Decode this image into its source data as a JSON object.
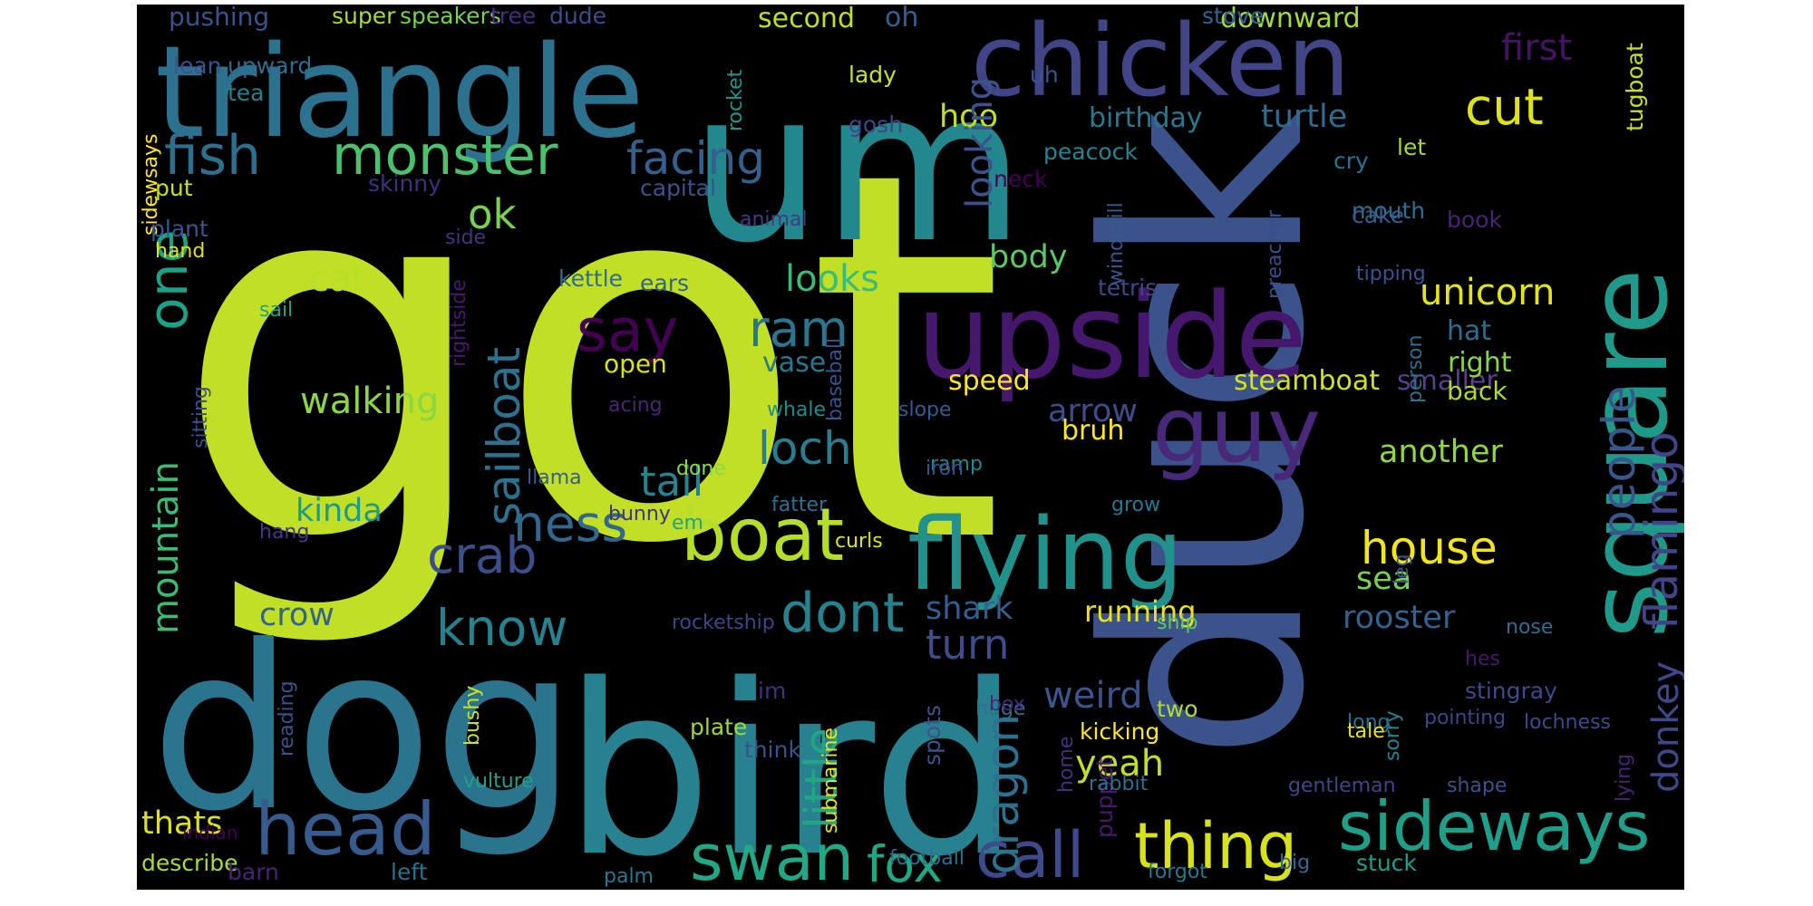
{
  "cloud": {
    "words": [
      {
        "t": "got",
        "c": "#c1df24"
      },
      {
        "t": "bird",
        "c": "#27818e"
      },
      {
        "t": "dog",
        "c": "#2b748e"
      },
      {
        "t": "duck",
        "c": "#3b528b"
      },
      {
        "t": "um",
        "c": "#23888e"
      },
      {
        "t": "triangle",
        "c": "#2c718e"
      },
      {
        "t": "upside",
        "c": "#46186d"
      },
      {
        "t": "chicken",
        "c": "#414487"
      },
      {
        "t": "flying",
        "c": "#21918c"
      },
      {
        "t": "guy",
        "c": "#482878"
      },
      {
        "t": "boat",
        "c": "#b5de2b"
      },
      {
        "t": "head",
        "c": "#375b8d"
      },
      {
        "t": "sideways",
        "c": "#1f9e89"
      },
      {
        "t": "thing",
        "c": "#d8e219"
      },
      {
        "t": "swan",
        "c": "#22a884"
      },
      {
        "t": "monster",
        "c": "#4ac16d"
      },
      {
        "t": "fish",
        "c": "#2d6f8e"
      },
      {
        "t": "cut",
        "c": "#dde318"
      },
      {
        "t": "call",
        "c": "#3e4a89"
      },
      {
        "t": "fox",
        "c": "#22a785"
      },
      {
        "t": "dont",
        "c": "#26828e"
      },
      {
        "t": "house",
        "c": "#f1e51d"
      },
      {
        "t": "know",
        "c": "#26828e"
      },
      {
        "t": "crab",
        "c": "#3c4f8a"
      },
      {
        "t": "facing",
        "c": "#355f8d"
      },
      {
        "t": "say",
        "c": "#440154"
      },
      {
        "t": "ram",
        "c": "#2a768e"
      },
      {
        "t": "ness",
        "c": "#31688e"
      },
      {
        "t": "loch",
        "c": "#277f8e"
      },
      {
        "t": "tail",
        "c": "#25858e"
      },
      {
        "t": "unicorn",
        "c": "#e2e418"
      },
      {
        "t": "square",
        "c": "#1f998a"
      },
      {
        "t": "people",
        "c": "#38588c"
      },
      {
        "t": "first",
        "c": "#471365"
      },
      {
        "t": "turtle",
        "c": "#2f6c8e"
      },
      {
        "t": "ok",
        "c": "#7ad151"
      },
      {
        "t": "one",
        "c": "#1fa187"
      },
      {
        "t": "sailboat",
        "c": "#2c728e"
      },
      {
        "t": "mountain",
        "c": "#3bbb75"
      },
      {
        "t": "cat",
        "c": "#b8de29"
      },
      {
        "t": "walking",
        "c": "#8bd646"
      },
      {
        "t": "kinda",
        "c": "#1f9a8a"
      },
      {
        "t": "looks",
        "c": "#3bbb75"
      },
      {
        "t": "arrow",
        "c": "#3e4c8a"
      },
      {
        "t": "another",
        "c": "#90d743"
      },
      {
        "t": "steamboat",
        "c": "#d2e21b"
      },
      {
        "t": "smaller",
        "c": "#5b3e8c"
      },
      {
        "t": "hat",
        "c": "#2e6d8e"
      },
      {
        "t": "right",
        "c": "#89d548"
      },
      {
        "t": "back",
        "c": "#addc30"
      },
      {
        "t": "flamingo",
        "c": "#414487"
      },
      {
        "t": "donkey",
        "c": "#3f4889"
      },
      {
        "t": "rooster",
        "c": "#33638d"
      },
      {
        "t": "shark",
        "c": "#365d8d"
      },
      {
        "t": "turn",
        "c": "#3d4e8a"
      },
      {
        "t": "dragon",
        "c": "#2c728e"
      },
      {
        "t": "weird",
        "c": "#3a548c"
      },
      {
        "t": "yeah",
        "c": "#c0df25"
      },
      {
        "t": "little",
        "c": "#21a585"
      },
      {
        "t": "running",
        "c": "#e7e419"
      },
      {
        "t": "crow",
        "c": "#32648e"
      },
      {
        "t": "thats",
        "c": "#ddE318"
      },
      {
        "t": "sea",
        "c": "#7ad151"
      },
      {
        "t": "body",
        "c": "#5cc863"
      },
      {
        "t": "hoo",
        "c": "#c2df23"
      },
      {
        "t": "looking",
        "c": "#3b528b"
      },
      {
        "t": "oh",
        "c": "#34608d"
      },
      {
        "t": "second",
        "c": "#bddf26"
      },
      {
        "t": "downward",
        "c": "#a2da37"
      },
      {
        "t": "birthday",
        "c": "#2a788e"
      },
      {
        "t": "vase",
        "c": "#2a778e"
      },
      {
        "t": "open",
        "c": "#d5e21a"
      },
      {
        "t": "bruh",
        "c": "#fde725"
      },
      {
        "t": "speed",
        "c": "#fde725"
      },
      {
        "t": "pushing",
        "c": "#3b528b"
      },
      {
        "t": "super",
        "c": "#a5db36"
      },
      {
        "t": "speakers",
        "c": "#75d054"
      },
      {
        "t": "tree",
        "c": "#472d7b"
      },
      {
        "t": "dude",
        "c": "#3e4c8a"
      },
      {
        "t": "stove",
        "c": "#33638d"
      },
      {
        "t": "lean",
        "c": "#3b528b"
      },
      {
        "t": "upward",
        "c": "#2f6c8e"
      },
      {
        "t": "tea",
        "c": "#26828e"
      },
      {
        "t": "lady",
        "c": "#cae11f"
      },
      {
        "t": "gosh",
        "c": "#414487"
      },
      {
        "t": "uh",
        "c": "#3a548c"
      },
      {
        "t": "peacock",
        "c": "#25858e"
      },
      {
        "t": "neck",
        "c": "#440154"
      },
      {
        "t": "cry",
        "c": "#2c728e"
      },
      {
        "t": "book",
        "c": "#482475"
      },
      {
        "t": "let",
        "c": "#a2da37"
      },
      {
        "t": "tugboat",
        "c": "#c5e021"
      },
      {
        "t": "rocket",
        "c": "#1f988b"
      },
      {
        "t": "sidewsays",
        "c": "#ffe725"
      },
      {
        "t": "put",
        "c": "#c8e020"
      },
      {
        "t": "skinny",
        "c": "#46307e"
      },
      {
        "t": "capital",
        "c": "#3b528b"
      },
      {
        "t": "plant",
        "c": "#38588c"
      },
      {
        "t": "hand",
        "c": "#dde318"
      },
      {
        "t": "animal",
        "c": "#443983"
      },
      {
        "t": "side",
        "c": "#46327e"
      },
      {
        "t": "mouth",
        "c": "#2d708e"
      },
      {
        "t": "cake",
        "c": "#365c8d"
      },
      {
        "t": "kettle",
        "c": "#2e6e8e"
      },
      {
        "t": "ears",
        "c": "#33638d"
      },
      {
        "t": "tetris",
        "c": "#3e4989"
      },
      {
        "t": "windmill",
        "c": "#38598c"
      },
      {
        "t": "tipping",
        "c": "#3b528b"
      },
      {
        "t": "preacher",
        "c": "#3d4d8a"
      },
      {
        "t": "sail",
        "c": "#20a386"
      },
      {
        "t": "rightside",
        "c": "#48186a"
      },
      {
        "t": "sitting",
        "c": "#3c508b"
      },
      {
        "t": "baseball",
        "c": "#3b528b"
      },
      {
        "t": "acing",
        "c": "#482677"
      },
      {
        "t": "whale",
        "c": "#228c8d"
      },
      {
        "t": "slope",
        "c": "#365c8d"
      },
      {
        "t": "person",
        "c": "#2d708e"
      },
      {
        "t": "ramp",
        "c": "#23898e"
      },
      {
        "t": "done",
        "c": "#8fd744"
      },
      {
        "t": "curls",
        "c": "#dce319"
      },
      {
        "t": "iron",
        "c": "#3b528b"
      },
      {
        "t": "fatter",
        "c": "#2c728e"
      },
      {
        "t": "llama",
        "c": "#365c8d"
      },
      {
        "t": "grow",
        "c": "#2a788e"
      },
      {
        "t": "em",
        "c": "#20a386"
      },
      {
        "t": "bunny",
        "c": "#472f7d"
      },
      {
        "t": "hang",
        "c": "#443983"
      },
      {
        "t": "leg",
        "c": "#3b528b"
      },
      {
        "t": "vulture",
        "c": "#1fa187"
      },
      {
        "t": "rocketship",
        "c": "#414487"
      },
      {
        "t": "hes",
        "c": "#48186a"
      },
      {
        "t": "ship",
        "c": "#5ec962"
      },
      {
        "t": "nose",
        "c": "#2e6e8e"
      },
      {
        "t": "im",
        "c": "#46307e"
      },
      {
        "t": "two",
        "c": "#addc30"
      },
      {
        "t": "spots",
        "c": "#3b528b"
      },
      {
        "t": "kicking",
        "c": "#fde725"
      },
      {
        "t": "think",
        "c": "#3b528b"
      },
      {
        "t": "puppet",
        "c": "#48186a"
      },
      {
        "t": "stingray",
        "c": "#3e4a89"
      },
      {
        "t": "pointing",
        "c": "#414487"
      },
      {
        "t": "bushy",
        "c": "#cde11d"
      },
      {
        "t": "reading",
        "c": "#3b528b"
      },
      {
        "t": "plate",
        "c": "#9bd93c"
      },
      {
        "t": "sorry",
        "c": "#26828e"
      },
      {
        "t": "huge",
        "c": "#2c718e"
      },
      {
        "t": "box",
        "c": "#482878"
      },
      {
        "t": "long",
        "c": "#2d708e"
      },
      {
        "t": "lochness",
        "c": "#3e4a89"
      },
      {
        "t": "tale",
        "c": "#e5e419"
      },
      {
        "t": "lying",
        "c": "#482475"
      },
      {
        "t": "home",
        "c": "#46307e"
      },
      {
        "t": "rabbit",
        "c": "#2c728e"
      },
      {
        "t": "gentleman",
        "c": "#414487"
      },
      {
        "t": "shape",
        "c": "#3b528b"
      },
      {
        "t": "indian",
        "c": "#440154"
      },
      {
        "t": "describe",
        "c": "#aadc32"
      },
      {
        "t": "barn",
        "c": "#482475"
      },
      {
        "t": "left",
        "c": "#2c728e"
      },
      {
        "t": "submarine",
        "c": "#e3e418"
      },
      {
        "t": "football",
        "c": "#2e6e8e"
      },
      {
        "t": "palm",
        "c": "#2a788e"
      },
      {
        "t": "forgot",
        "c": "#2a788e"
      },
      {
        "t": "big",
        "c": "#2f6c8e"
      },
      {
        "t": "stuck",
        "c": "#1f9e89"
      }
    ]
  }
}
